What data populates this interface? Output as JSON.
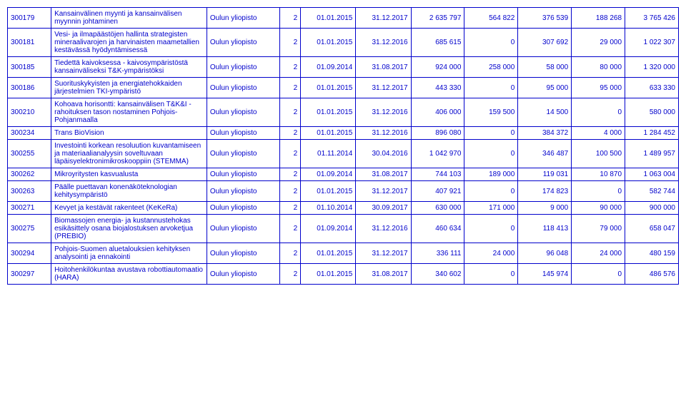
{
  "rows": [
    {
      "id": "300179",
      "desc": "Kansainvälinen myynti ja kansainvälisen myynnin johtaminen",
      "org": "Oulun yliopisto",
      "c": "2",
      "d1": "01.01.2015",
      "d2": "31.12.2017",
      "v1": "2 635 797",
      "v2": "564 822",
      "v3": "376 539",
      "v4": "188 268",
      "v5": "3 765 426"
    },
    {
      "id": "300181",
      "desc": "Vesi- ja ilmapäästöjen hallinta strategisten mineraalivarojen ja harvinaisten maametallien kestävässä hyödyntämisessä",
      "org": "Oulun yliopisto",
      "c": "2",
      "d1": "01.01.2015",
      "d2": "31.12.2016",
      "v1": "685 615",
      "v2": "0",
      "v3": "307 692",
      "v4": "29 000",
      "v5": "1 022 307"
    },
    {
      "id": "300185",
      "desc": "Tiedettä kaivoksessa - kaivosympäristöstä kansainväliseksi T&K-ympäristöksi",
      "org": "Oulun yliopisto",
      "c": "2",
      "d1": "01.09.2014",
      "d2": "31.08.2017",
      "v1": "924 000",
      "v2": "258 000",
      "v3": "58 000",
      "v4": "80 000",
      "v5": "1 320 000"
    },
    {
      "id": "300186",
      "desc": "Suorituskykyisten ja energiatehokkaiden järjestelmien TKI-ympäristö",
      "org": "Oulun yliopisto",
      "c": "2",
      "d1": "01.01.2015",
      "d2": "31.12.2017",
      "v1": "443 330",
      "v2": "0",
      "v3": "95 000",
      "v4": "95 000",
      "v5": "633 330"
    },
    {
      "id": "300210",
      "desc": "Kohoava horisontti: kansainvälisen T&K&I - rahoituksen tason nostaminen Pohjois-Pohjanmaalla",
      "org": "Oulun yliopisto",
      "c": "2",
      "d1": "01.01.2015",
      "d2": "31.12.2016",
      "v1": "406 000",
      "v2": "159 500",
      "v3": "14 500",
      "v4": "0",
      "v5": "580 000"
    },
    {
      "id": "300234",
      "desc": "Trans BioVision",
      "org": "Oulun yliopisto",
      "c": "2",
      "d1": "01.01.2015",
      "d2": "31.12.2016",
      "v1": "896 080",
      "v2": "0",
      "v3": "384 372",
      "v4": "4 000",
      "v5": "1 284 452"
    },
    {
      "id": "300255",
      "desc": "Investointi korkean resoluution kuvantamiseen ja materiaalianalyysin soveltuvaan läpäisyelektronimikroskooppiin (STEMMA)",
      "org": "Oulun yliopisto",
      "c": "2",
      "d1": "01.11.2014",
      "d2": "30.04.2016",
      "v1": "1 042 970",
      "v2": "0",
      "v3": "346 487",
      "v4": "100 500",
      "v5": "1 489 957"
    },
    {
      "id": "300262",
      "desc": "Mikroyritysten kasvualusta",
      "org": "Oulun yliopisto",
      "c": "2",
      "d1": "01.09.2014",
      "d2": "31.08.2017",
      "v1": "744 103",
      "v2": "189 000",
      "v3": "119 031",
      "v4": "10 870",
      "v5": "1 063 004"
    },
    {
      "id": "300263",
      "desc": "Päälle puettavan konenäköteknologian kehitysympäristö",
      "org": "Oulun yliopisto",
      "c": "2",
      "d1": "01.01.2015",
      "d2": "31.12.2017",
      "v1": "407 921",
      "v2": "0",
      "v3": "174 823",
      "v4": "0",
      "v5": "582 744"
    },
    {
      "id": "300271",
      "desc": "Kevyet ja kestävät rakenteet (KeKeRa)",
      "org": "Oulun yliopisto",
      "c": "2",
      "d1": "01.10.2014",
      "d2": "30.09.2017",
      "v1": "630 000",
      "v2": "171 000",
      "v3": "9 000",
      "v4": "90 000",
      "v5": "900 000"
    },
    {
      "id": "300275",
      "desc": "Biomassojen energia- ja kustannustehokas esikäsittely osana biojalostuksen arvoketjua (PREBIO)",
      "org": "Oulun yliopisto",
      "c": "2",
      "d1": "01.09.2014",
      "d2": "31.12.2016",
      "v1": "460 634",
      "v2": "0",
      "v3": "118 413",
      "v4": "79 000",
      "v5": "658 047"
    },
    {
      "id": "300294",
      "desc": "Pohjois-Suomen aluetalouksien kehityksen analysointi ja ennakointi",
      "org": "Oulun yliopisto",
      "c": "2",
      "d1": "01.01.2015",
      "d2": "31.12.2017",
      "v1": "336 111",
      "v2": "24 000",
      "v3": "96 048",
      "v4": "24 000",
      "v5": "480 159"
    },
    {
      "id": "300297",
      "desc": "Hoitohenkilökuntaa avustava robottiautomaatio (HARA)",
      "org": "Oulun yliopisto",
      "c": "2",
      "d1": "01.01.2015",
      "d2": "31.08.2017",
      "v1": "340 602",
      "v2": "0",
      "v3": "145 974",
      "v4": "0",
      "v5": "486 576"
    }
  ]
}
